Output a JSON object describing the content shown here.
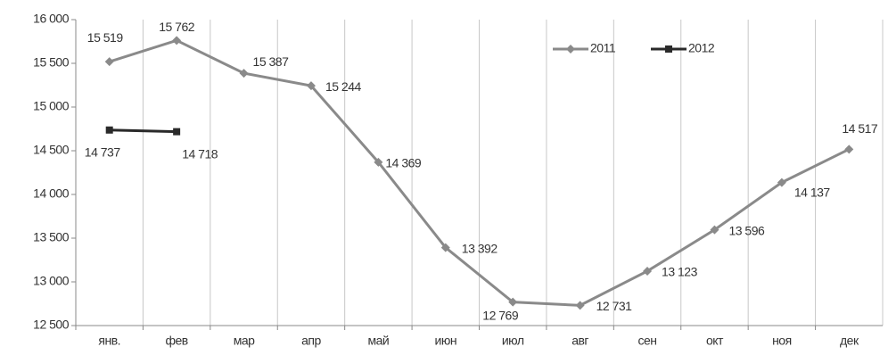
{
  "chart_data": {
    "type": "line",
    "categories": [
      "янв.",
      "фев",
      "мар",
      "апр",
      "май",
      "июн",
      "июл",
      "авг",
      "сен",
      "окт",
      "ноя",
      "дек"
    ],
    "series": [
      {
        "name": "2011",
        "color": "#8a8a8a",
        "marker": "diamond",
        "values": [
          15519,
          15762,
          15387,
          15244,
          14369,
          13392,
          12769,
          12731,
          13123,
          13596,
          14137,
          14517
        ],
        "value_labels": [
          "15 519",
          "15 762",
          "15 387",
          "15 244",
          "14 369",
          "13 392",
          "12 769",
          "12 731",
          "13 123",
          "13 596",
          "14 137",
          "14 517"
        ]
      },
      {
        "name": "2012",
        "color": "#2a2a2a",
        "marker": "square",
        "values": [
          14737,
          14718,
          null,
          null,
          null,
          null,
          null,
          null,
          null,
          null,
          null,
          null
        ],
        "value_labels": [
          "14 737",
          "14 718",
          null,
          null,
          null,
          null,
          null,
          null,
          null,
          null,
          null,
          null
        ]
      }
    ],
    "ylim": [
      12500,
      16000
    ],
    "yticks": [
      {
        "value": 12500,
        "label": "12 500"
      },
      {
        "value": 13000,
        "label": "13 000"
      },
      {
        "value": 13500,
        "label": "13 500"
      },
      {
        "value": 14000,
        "label": "14 000"
      },
      {
        "value": 14500,
        "label": "14 500"
      },
      {
        "value": 15000,
        "label": "15 000"
      },
      {
        "value": 15500,
        "label": "15 500"
      },
      {
        "value": 16000,
        "label": "16 000"
      }
    ],
    "grid": true,
    "legend": "top-right"
  }
}
